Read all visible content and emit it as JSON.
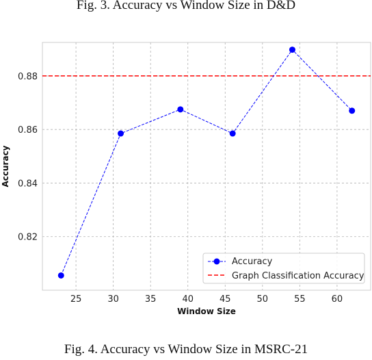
{
  "captions": {
    "top": "Fig. 3.  Accuracy vs Window Size in D&D",
    "bottom": "Fig. 4.  Accuracy vs Window Size in MSRC-21"
  },
  "chart_data": {
    "type": "line",
    "xlabel": "Window Size",
    "ylabel": "Accuracy",
    "xlim": [
      20.5,
      64.5
    ],
    "ylim": [
      0.8,
      0.8925
    ],
    "xticks": [
      25,
      30,
      35,
      40,
      45,
      50,
      55,
      60
    ],
    "yticks": [
      0.82,
      0.84,
      0.86,
      0.88
    ],
    "grid": true,
    "legend_position": "bottom-right",
    "series": [
      {
        "name": "Accuracy",
        "color": "#0000ff",
        "style": "dashed-with-markers",
        "x": [
          23,
          31,
          39,
          46,
          54,
          62
        ],
        "y": [
          0.8055,
          0.8585,
          0.8675,
          0.8585,
          0.8898,
          0.867
        ]
      }
    ],
    "reference_lines": [
      {
        "name": "Graph Classification Accuracy",
        "color": "#ff0000",
        "style": "dashed",
        "y": 0.88
      }
    ]
  }
}
